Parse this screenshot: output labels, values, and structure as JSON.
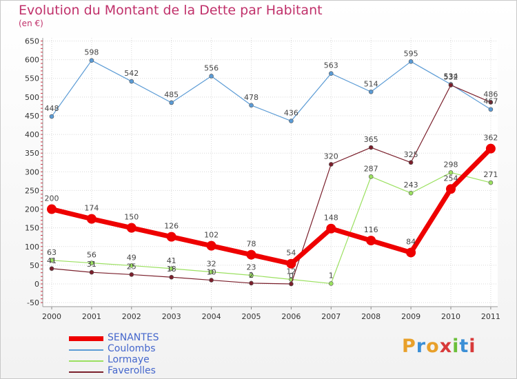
{
  "title": "Evolution du Montant de la Dette par Habitant",
  "unit": "(en €)",
  "logo": {
    "letters": [
      "P",
      "r",
      "o",
      "x",
      "i",
      "t",
      "i"
    ],
    "colors": [
      "#e8a02a",
      "#3b8fd6",
      "#e8a02a",
      "#d83a3a",
      "#6bbf3a",
      "#3b8fd6",
      "#d83a3a"
    ]
  },
  "chart_data": {
    "type": "line",
    "x": [
      "2000",
      "2001",
      "2002",
      "2003",
      "2004",
      "2005",
      "2006",
      "2007",
      "2008",
      "2009",
      "2010",
      "2011"
    ],
    "y_ticks": [
      650,
      600,
      550,
      500,
      450,
      400,
      350,
      300,
      250,
      200,
      150,
      100,
      50,
      0,
      -50
    ],
    "ylim": [
      -50,
      650
    ],
    "grid": true,
    "legend_position": "bottom-left",
    "series": [
      {
        "name": "SENANTES",
        "color": "#ee0000",
        "width": 7,
        "marker": 7,
        "values": [
          200,
          174,
          150,
          126,
          102,
          78,
          54,
          148,
          116,
          84,
          254,
          362
        ],
        "labels": [
          "200",
          "174",
          "150",
          "126",
          "102",
          "78",
          "54",
          "148",
          "116",
          "84",
          "254",
          "362"
        ]
      },
      {
        "name": "Coulombs",
        "color": "#5b9bd5",
        "width": 1.2,
        "marker": 3,
        "values": [
          448,
          598,
          542,
          485,
          556,
          478,
          436,
          563,
          514,
          595,
          534,
          467
        ],
        "labels": [
          "448",
          "598",
          "542",
          "485",
          "556",
          "478",
          "436",
          "563",
          "514",
          "595",
          "534",
          "467"
        ]
      },
      {
        "name": "Lormaye",
        "color": "#9be060",
        "width": 1.2,
        "marker": 3,
        "values": [
          63,
          56,
          49,
          41,
          32,
          23,
          12,
          1,
          287,
          243,
          298,
          271
        ],
        "labels": [
          "63",
          "56",
          "49",
          "41",
          "32",
          "23",
          "12",
          "1",
          "287",
          "243",
          "298",
          "271"
        ]
      },
      {
        "name": "Faverolles",
        "color": "#7a1f2b",
        "width": 1.2,
        "marker": 3,
        "values": [
          41,
          31,
          25,
          18,
          10,
          2,
          0,
          320,
          365,
          325,
          532,
          486
        ],
        "labels": [
          "41",
          "31",
          "25",
          "18",
          "10",
          "2",
          "0",
          "320",
          "365",
          "325",
          "532",
          "486"
        ]
      }
    ]
  }
}
